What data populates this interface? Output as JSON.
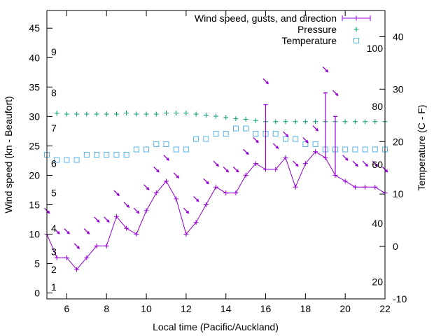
{
  "chart_data": {
    "type": "line",
    "title": "",
    "xlabel": "Local time (Pacific/Auckland)",
    "ylabel": "Wind speed (kn - Beaufort)",
    "y2label": "Temperature (C - F)",
    "xlim": [
      5,
      22
    ],
    "ylim": [
      -1,
      48
    ],
    "y2lim": [
      -10,
      45
    ],
    "pressure_range": [
      0,
      110
    ],
    "grid": false,
    "legend_position": "top-right",
    "x_ticks": [
      6,
      8,
      10,
      12,
      14,
      16,
      18,
      20,
      22
    ],
    "x_tick_labels": [
      "6",
      "8",
      "10",
      "12",
      "14",
      "16",
      "18",
      "20",
      "22"
    ],
    "y_ticks": [
      0,
      5,
      10,
      15,
      20,
      25,
      30,
      35,
      40,
      45
    ],
    "y_tick_labels": [
      "0",
      "5",
      "10",
      "15",
      "20",
      "25",
      "30",
      "35",
      "40",
      "45"
    ],
    "y2_ticks": [
      -10,
      0,
      10,
      20,
      30,
      40
    ],
    "y2_tick_labels": [
      "-10",
      "0",
      "10",
      "20",
      "30",
      "40"
    ],
    "beaufort_labels": [
      {
        "text": "1",
        "y": 1
      },
      {
        "text": "2",
        "y": 4
      },
      {
        "text": "3",
        "y": 7
      },
      {
        "text": "4",
        "y": 11
      },
      {
        "text": "5",
        "y": 17
      },
      {
        "text": "6",
        "y": 22
      },
      {
        "text": "7",
        "y": 28
      },
      {
        "text": "8",
        "y": 34
      },
      {
        "text": "9",
        "y": 41
      }
    ],
    "fahrenheit_labels": [
      {
        "text": "20",
        "temp": -6.7
      },
      {
        "text": "40",
        "temp": 4.4
      },
      {
        "text": "60",
        "temp": 15.6
      },
      {
        "text": "80",
        "temp": 26.7
      },
      {
        "text": "100",
        "temp": 37.8
      }
    ],
    "legend": [
      {
        "label": "Wind speed, gusts, and direction",
        "color": "#9400d3",
        "marker": "plus-line"
      },
      {
        "label": "Pressure",
        "color": "#009e73",
        "marker": "plus"
      },
      {
        "label": "Temperature",
        "color": "#56b4e9",
        "marker": "square"
      }
    ],
    "series": [
      {
        "name": "Wind speed",
        "color": "#9400d3",
        "x": [
          5,
          5.5,
          6,
          6.5,
          7,
          7.5,
          8,
          8.5,
          9,
          9.5,
          10,
          10.5,
          11,
          11.5,
          12,
          12.5,
          13,
          13.5,
          14,
          14.5,
          15,
          15.5,
          16,
          16.5,
          17,
          17.5,
          18,
          18.5,
          19,
          19.5,
          20,
          20.5,
          21,
          21.5,
          22
        ],
        "values": [
          10,
          6,
          6,
          4,
          6,
          8,
          8,
          13,
          11,
          10,
          14,
          17,
          19,
          16,
          10,
          12,
          15,
          18,
          17,
          17,
          20,
          22,
          21,
          21,
          23,
          18,
          22,
          24,
          23,
          20,
          19,
          18,
          18,
          18,
          17
        ]
      },
      {
        "name": "Gusts",
        "color": "#9400d3",
        "x": [
          16,
          19,
          19.5
        ],
        "base": [
          21,
          23,
          20
        ],
        "values": [
          32,
          34,
          30
        ]
      },
      {
        "name": "Pressure",
        "color": "#009e73",
        "x": [
          5.5,
          6,
          6.5,
          7,
          7.5,
          8,
          8.5,
          9,
          9.5,
          10,
          10.5,
          11,
          11.5,
          12,
          12.5,
          13,
          13.5,
          14,
          14.5,
          15,
          15.5,
          16,
          16.5,
          17,
          17.5,
          18,
          18.5,
          19,
          19.5,
          20,
          20.5,
          21,
          21.5,
          22
        ],
        "values": [
          70.8,
          70.5,
          70.5,
          70.5,
          70.5,
          70.5,
          70.5,
          70.9,
          70.5,
          70.5,
          70.5,
          70.9,
          70.9,
          70.9,
          70.5,
          70.1,
          69.7,
          69.2,
          68.7,
          68.5,
          68,
          67.6,
          67.6,
          67.6,
          67.6,
          67.6,
          67.6,
          67.6,
          67.6,
          67.6,
          67.6,
          67.6,
          67.6,
          67.6
        ]
      },
      {
        "name": "Temperature",
        "color": "#56b4e9",
        "x": [
          5,
          5.5,
          6,
          6.5,
          7,
          7.5,
          8,
          8.5,
          9,
          9.5,
          10,
          10.5,
          11,
          11.5,
          12,
          12.5,
          13,
          13.5,
          14,
          14.5,
          15,
          15.5,
          16,
          16.5,
          17,
          17.5,
          18,
          18.5,
          19,
          19.5,
          20,
          20.5,
          21,
          21.5,
          22
        ],
        "values": [
          17.5,
          16.5,
          16.5,
          16.5,
          17.5,
          17.5,
          17.5,
          17.5,
          17.5,
          18.5,
          18.5,
          19.5,
          19.5,
          18.5,
          18.5,
          20.5,
          20.5,
          21.5,
          21.5,
          22.5,
          22.5,
          21.5,
          21.5,
          21.5,
          20.5,
          20.5,
          19.5,
          19.5,
          18.5,
          18.5,
          18.5,
          18.5,
          18.5,
          18.5,
          18.5
        ]
      }
    ],
    "direction_arrows": {
      "color": "#9400d3",
      "items": [
        {
          "x": 5,
          "y": 14,
          "dir": "se"
        },
        {
          "x": 5.5,
          "y": 10.5,
          "dir": "se"
        },
        {
          "x": 6,
          "y": 10.5,
          "dir": "se"
        },
        {
          "x": 6.5,
          "y": 8,
          "dir": "se"
        },
        {
          "x": 7,
          "y": 10.5,
          "dir": "se"
        },
        {
          "x": 7.5,
          "y": 12.5,
          "dir": "se"
        },
        {
          "x": 8,
          "y": 12.5,
          "dir": "se"
        },
        {
          "x": 8.5,
          "y": 17,
          "dir": "se"
        },
        {
          "x": 9,
          "y": 15,
          "dir": "se"
        },
        {
          "x": 9.5,
          "y": 14,
          "dir": "se"
        },
        {
          "x": 10,
          "y": 18,
          "dir": "se"
        },
        {
          "x": 10.5,
          "y": 21,
          "dir": "se"
        },
        {
          "x": 11,
          "y": 23,
          "dir": "se"
        },
        {
          "x": 11.5,
          "y": 20,
          "dir": "se"
        },
        {
          "x": 12,
          "y": 14,
          "dir": "se"
        },
        {
          "x": 12.5,
          "y": 16,
          "dir": "se"
        },
        {
          "x": 13,
          "y": 19,
          "dir": "se"
        },
        {
          "x": 13.5,
          "y": 22,
          "dir": "se"
        },
        {
          "x": 14,
          "y": 21,
          "dir": "se"
        },
        {
          "x": 14.5,
          "y": 21,
          "dir": "se"
        },
        {
          "x": 15,
          "y": 24,
          "dir": "se"
        },
        {
          "x": 15.5,
          "y": 26,
          "dir": "se"
        },
        {
          "x": 16,
          "y": 36,
          "dir": "se"
        },
        {
          "x": 16.5,
          "y": 25,
          "dir": "se"
        },
        {
          "x": 17,
          "y": 27,
          "dir": "se"
        },
        {
          "x": 17.5,
          "y": 22,
          "dir": "se"
        },
        {
          "x": 18,
          "y": 26,
          "dir": "se"
        },
        {
          "x": 18.5,
          "y": 28,
          "dir": "se"
        },
        {
          "x": 19,
          "y": 38,
          "dir": "se"
        },
        {
          "x": 19.5,
          "y": 34,
          "dir": "se"
        },
        {
          "x": 20,
          "y": 23,
          "dir": "se"
        },
        {
          "x": 20.5,
          "y": 22,
          "dir": "se"
        },
        {
          "x": 21,
          "y": 22,
          "dir": "se"
        },
        {
          "x": 21.5,
          "y": 22,
          "dir": "se"
        },
        {
          "x": 22,
          "y": 21,
          "dir": "se"
        }
      ]
    }
  }
}
